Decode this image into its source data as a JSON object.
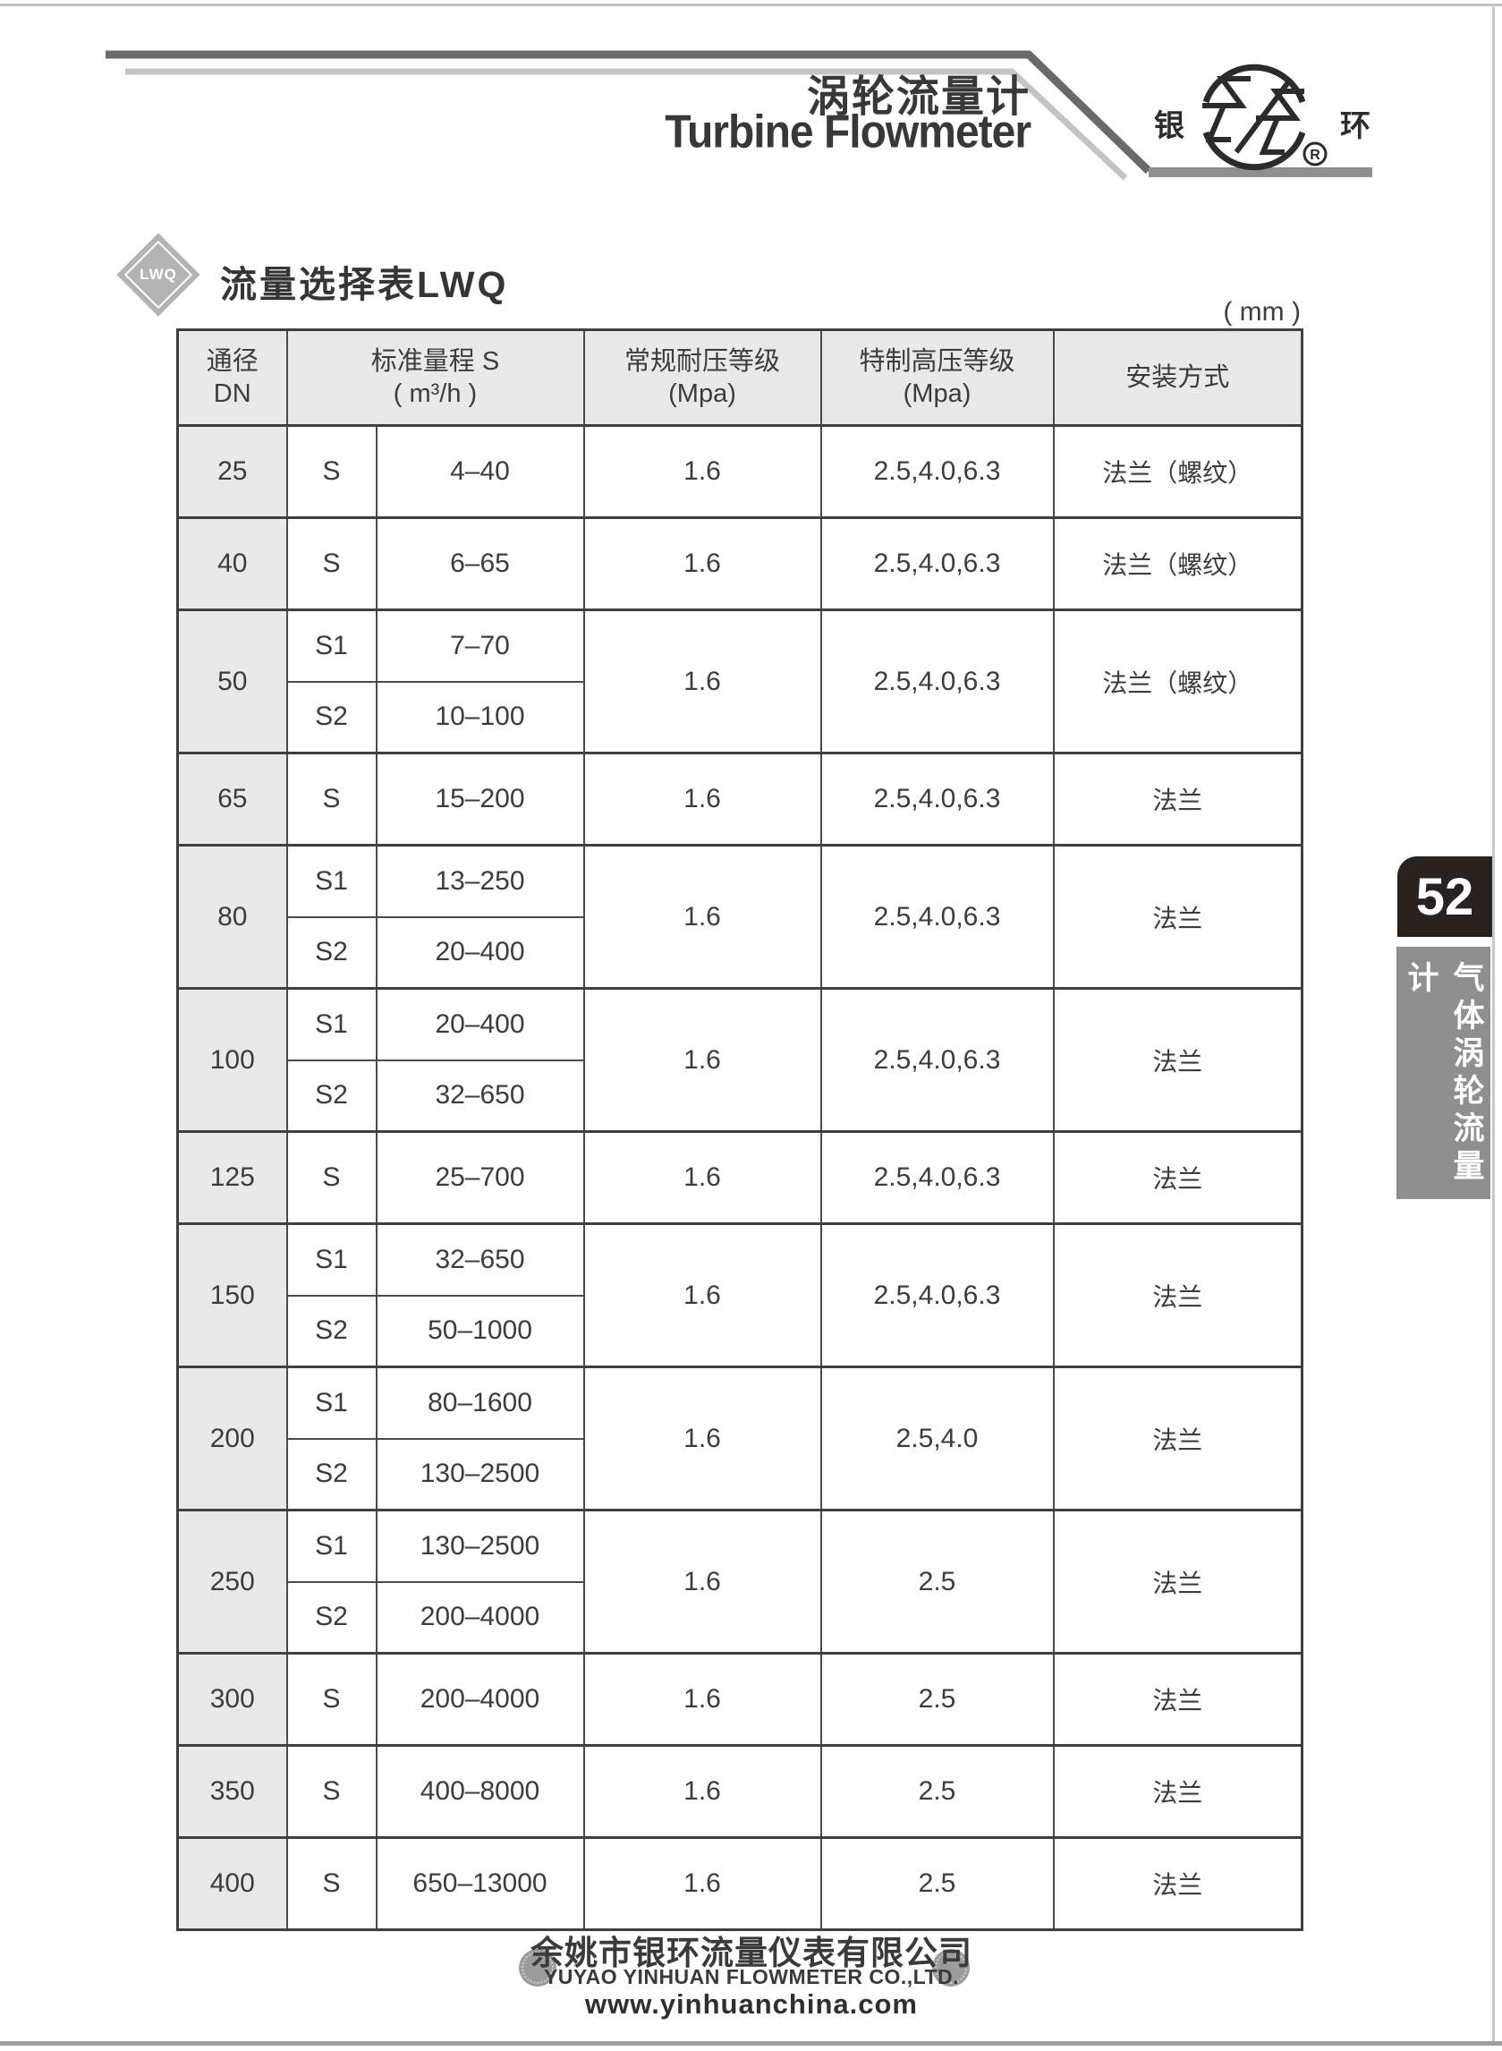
{
  "page": {
    "title_zh": "涡轮流量计",
    "title_en": "Turbine Flowmeter",
    "unit_label": "( mm )"
  },
  "logo": {
    "left": "银",
    "right": "环",
    "reg": "R"
  },
  "section": {
    "badge": "LWQ",
    "title": "流量选择表LWQ"
  },
  "sidebar": {
    "page_number": "52",
    "category": "气体涡轮流量计"
  },
  "table": {
    "headers": {
      "dn": [
        "通径",
        "DN"
      ],
      "range": [
        "标准量程 S",
        "( m³/h )"
      ],
      "normal": [
        "常规耐压等级",
        "(Mpa)"
      ],
      "special": [
        "特制高压等级",
        "(Mpa)"
      ],
      "mount": "安装方式"
    },
    "rows": [
      {
        "dn": "25",
        "variants": [
          {
            "s": "S",
            "range": "4–40"
          }
        ],
        "normal": "1.6",
        "special": "2.5,4.0,6.3",
        "mount": "法兰（螺纹）"
      },
      {
        "dn": "40",
        "variants": [
          {
            "s": "S",
            "range": "6–65"
          }
        ],
        "normal": "1.6",
        "special": "2.5,4.0,6.3",
        "mount": "法兰（螺纹）"
      },
      {
        "dn": "50",
        "variants": [
          {
            "s": "S1",
            "range": "7–70"
          },
          {
            "s": "S2",
            "range": "10–100"
          }
        ],
        "normal": "1.6",
        "special": "2.5,4.0,6.3",
        "mount": "法兰（螺纹）"
      },
      {
        "dn": "65",
        "variants": [
          {
            "s": "S",
            "range": "15–200"
          }
        ],
        "normal": "1.6",
        "special": "2.5,4.0,6.3",
        "mount": "法兰"
      },
      {
        "dn": "80",
        "variants": [
          {
            "s": "S1",
            "range": "13–250"
          },
          {
            "s": "S2",
            "range": "20–400"
          }
        ],
        "normal": "1.6",
        "special": "2.5,4.0,6.3",
        "mount": "法兰"
      },
      {
        "dn": "100",
        "variants": [
          {
            "s": "S1",
            "range": "20–400"
          },
          {
            "s": "S2",
            "range": "32–650"
          }
        ],
        "normal": "1.6",
        "special": "2.5,4.0,6.3",
        "mount": "法兰"
      },
      {
        "dn": "125",
        "variants": [
          {
            "s": "S",
            "range": "25–700"
          }
        ],
        "normal": "1.6",
        "special": "2.5,4.0,6.3",
        "mount": "法兰"
      },
      {
        "dn": "150",
        "variants": [
          {
            "s": "S1",
            "range": "32–650"
          },
          {
            "s": "S2",
            "range": "50–1000"
          }
        ],
        "normal": "1.6",
        "special": "2.5,4.0,6.3",
        "mount": "法兰"
      },
      {
        "dn": "200",
        "variants": [
          {
            "s": "S1",
            "range": "80–1600"
          },
          {
            "s": "S2",
            "range": "130–2500"
          }
        ],
        "normal": "1.6",
        "special": "2.5,4.0",
        "mount": "法兰"
      },
      {
        "dn": "250",
        "variants": [
          {
            "s": "S1",
            "range": "130–2500"
          },
          {
            "s": "S2",
            "range": "200–4000"
          }
        ],
        "normal": "1.6",
        "special": "2.5",
        "mount": "法兰"
      },
      {
        "dn": "300",
        "variants": [
          {
            "s": "S",
            "range": "200–4000"
          }
        ],
        "normal": "1.6",
        "special": "2.5",
        "mount": "法兰"
      },
      {
        "dn": "350",
        "variants": [
          {
            "s": "S",
            "range": "400–8000"
          }
        ],
        "normal": "1.6",
        "special": "2.5",
        "mount": "法兰"
      },
      {
        "dn": "400",
        "variants": [
          {
            "s": "S",
            "range": "650–13000"
          }
        ],
        "normal": "1.6",
        "special": "2.5",
        "mount": "法兰"
      }
    ]
  },
  "footer": {
    "company_zh": "余姚市银环流量仪表有限公司",
    "company_en": "YUYAO YINHUAN FLOWMETER CO.,LTD.",
    "website": "www.yinhuanchina.com"
  },
  "colors": {
    "accent_dark_line": "#6a6a6a",
    "accent_light_line": "#c4c4c4",
    "table_shade": "#e9e9e7",
    "tab_black": "#28221e",
    "tab_gray": "#8f8f8f"
  }
}
